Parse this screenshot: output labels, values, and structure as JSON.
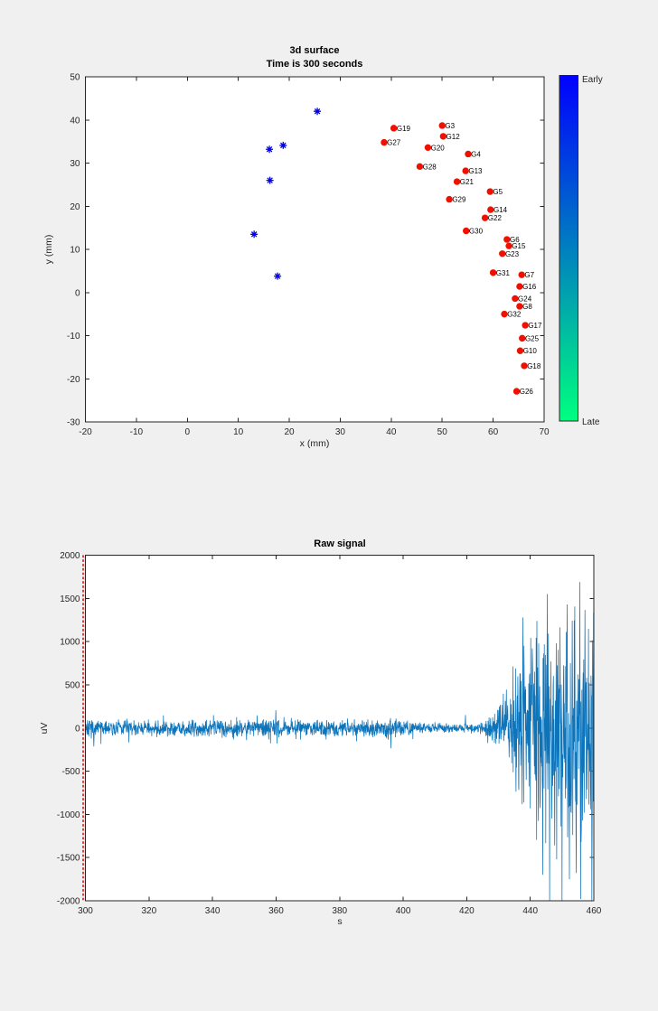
{
  "window": {
    "background": "#f0f0f0",
    "axes_color": "#262626"
  },
  "chart_data": [
    {
      "id": "scatter",
      "type": "scatter",
      "title": "3d surface",
      "subtitle": "Time is 300 seconds",
      "xlabel": "x (mm)",
      "ylabel": "y (mm)",
      "xlim": [
        -20,
        70
      ],
      "ylim": [
        -30,
        50
      ],
      "xticks": [
        -20,
        -10,
        0,
        10,
        20,
        30,
        40,
        50,
        60,
        70
      ],
      "yticks": [
        -30,
        -20,
        -10,
        0,
        10,
        20,
        30,
        40,
        50
      ],
      "grid": false,
      "electrode_color": "#f01000",
      "asterisk_color": "#0000ee",
      "series": [
        {
          "name": "labeled-electrodes",
          "marker": "filled-circle",
          "points": [
            {
              "label": "G19",
              "x": 40.5,
              "y": 38.1
            },
            {
              "label": "G3",
              "x": 50.0,
              "y": 38.7
            },
            {
              "label": "G12",
              "x": 50.2,
              "y": 36.2
            },
            {
              "label": "G27",
              "x": 38.6,
              "y": 34.8
            },
            {
              "label": "G20",
              "x": 47.2,
              "y": 33.6
            },
            {
              "label": "G4",
              "x": 55.1,
              "y": 32.1
            },
            {
              "label": "G28",
              "x": 45.6,
              "y": 29.2
            },
            {
              "label": "G13",
              "x": 54.6,
              "y": 28.2
            },
            {
              "label": "G21",
              "x": 52.9,
              "y": 25.7
            },
            {
              "label": "G5",
              "x": 59.4,
              "y": 23.4
            },
            {
              "label": "G29",
              "x": 51.4,
              "y": 21.6
            },
            {
              "label": "G14",
              "x": 59.5,
              "y": 19.2
            },
            {
              "label": "G22",
              "x": 58.4,
              "y": 17.3
            },
            {
              "label": "G30",
              "x": 54.7,
              "y": 14.3
            },
            {
              "label": "G6",
              "x": 62.7,
              "y": 12.3
            },
            {
              "label": "G15",
              "x": 63.1,
              "y": 10.8
            },
            {
              "label": "G23",
              "x": 61.8,
              "y": 9.0
            },
            {
              "label": "G31",
              "x": 60.0,
              "y": 4.6
            },
            {
              "label": "G7",
              "x": 65.6,
              "y": 4.1
            },
            {
              "label": "G16",
              "x": 65.2,
              "y": 1.4
            },
            {
              "label": "G24",
              "x": 64.3,
              "y": -1.4
            },
            {
              "label": "G8",
              "x": 65.2,
              "y": -3.2
            },
            {
              "label": "G32",
              "x": 62.2,
              "y": -5.0
            },
            {
              "label": "G17",
              "x": 66.3,
              "y": -7.6
            },
            {
              "label": "G25",
              "x": 65.7,
              "y": -10.6
            },
            {
              "label": "G10",
              "x": 65.3,
              "y": -13.5
            },
            {
              "label": "G18",
              "x": 66.1,
              "y": -17.0
            },
            {
              "label": "G26",
              "x": 64.6,
              "y": -22.9
            }
          ]
        },
        {
          "name": "unlabeled-markers",
          "marker": "asterisk",
          "points": [
            {
              "x": 25.5,
              "y": 42.0
            },
            {
              "x": 18.8,
              "y": 34.1
            },
            {
              "x": 16.1,
              "y": 33.2
            },
            {
              "x": 16.2,
              "y": 26.0
            },
            {
              "x": 13.1,
              "y": 13.5
            },
            {
              "x": 17.7,
              "y": 3.8
            }
          ]
        }
      ],
      "colorbar": {
        "label_top": "Early",
        "label_bottom": "Late",
        "color_top": "#0000ff",
        "color_bottom": "#00ff80"
      }
    },
    {
      "id": "raw",
      "type": "line",
      "title": "Raw signal",
      "xlabel": "s",
      "ylabel": "uV",
      "xlim": [
        300,
        460
      ],
      "ylim": [
        -2000,
        2000
      ],
      "xticks": [
        300,
        320,
        340,
        360,
        380,
        400,
        420,
        440,
        460
      ],
      "yticks": [
        -2000,
        -1500,
        -1000,
        -500,
        0,
        500,
        1000,
        1500,
        2000
      ],
      "grid": false,
      "line_color": "#0e74ba",
      "cursor_line": {
        "x": 300,
        "color": "#ff0000",
        "style": "dotted"
      },
      "signal_envelope": [
        [
          300,
          115
        ],
        [
          303,
          95
        ],
        [
          310,
          92
        ],
        [
          330,
          88
        ],
        [
          355,
          95
        ],
        [
          359,
          115
        ],
        [
          363,
          88
        ],
        [
          378,
          85
        ],
        [
          392,
          100
        ],
        [
          396,
          115
        ],
        [
          400,
          85
        ],
        [
          406,
          68
        ],
        [
          412,
          52
        ],
        [
          420,
          48
        ],
        [
          424,
          60
        ],
        [
          427,
          110
        ],
        [
          430,
          230
        ],
        [
          433,
          420
        ],
        [
          436,
          700
        ],
        [
          439,
          950
        ],
        [
          442,
          1150
        ],
        [
          445,
          1280
        ],
        [
          447,
          1200
        ],
        [
          450,
          1230
        ],
        [
          453,
          1300
        ],
        [
          456,
          1380
        ],
        [
          458,
          1300
        ],
        [
          460,
          1320
        ]
      ],
      "signal_spikes": [
        [
          302.6,
          -215
        ],
        [
          359.9,
          205
        ],
        [
          396.2,
          -235
        ],
        [
          419.6,
          150
        ],
        [
          437.7,
          1280
        ],
        [
          443.9,
          -1700
        ],
        [
          445.4,
          1550
        ],
        [
          448.3,
          -1520
        ],
        [
          451.6,
          1430
        ],
        [
          452.3,
          -1750
        ],
        [
          455.8,
          -1980
        ]
      ],
      "noise_seed": 7,
      "sample_step": 0.08
    }
  ]
}
